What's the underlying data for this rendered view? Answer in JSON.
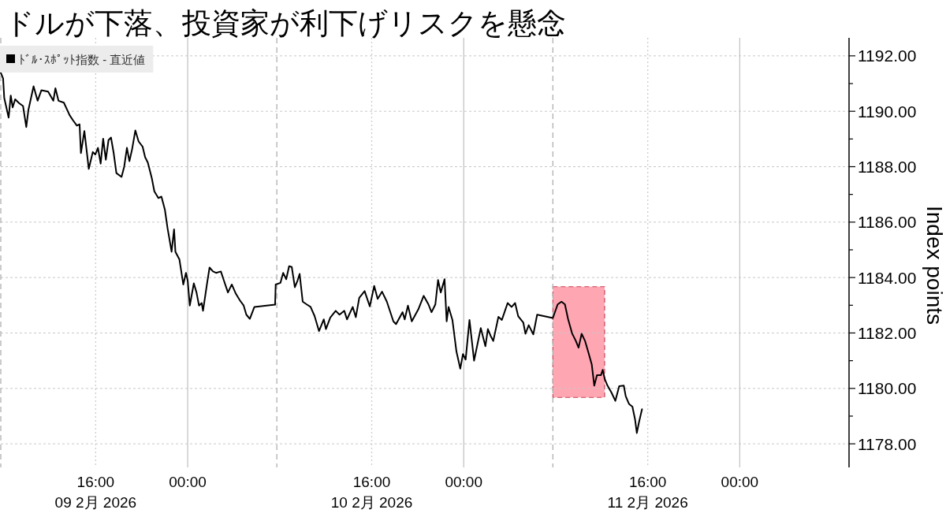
{
  "chart_data": {
    "type": "line",
    "title": "ドルが下落、投資家が利下げリスクを懸念",
    "ylabel": "Index points",
    "x": [
      "2026-02-09T07:45",
      "2026-02-09T07:57",
      "2026-02-09T08:03",
      "2026-02-09T08:26",
      "2026-02-09T08:37",
      "2026-02-09T08:47",
      "2026-02-09T09:00",
      "2026-02-09T09:21",
      "2026-02-09T09:41",
      "2026-02-09T09:58",
      "2026-02-09T10:09",
      "2026-02-09T10:36",
      "2026-02-09T10:57",
      "2026-02-09T11:17",
      "2026-02-09T11:52",
      "2026-02-09T12:19",
      "2026-02-09T12:30",
      "2026-02-09T12:46",
      "2026-02-09T13:14",
      "2026-02-09T13:44",
      "2026-02-09T14:02",
      "2026-02-09T14:22",
      "2026-02-09T14:36",
      "2026-02-09T14:43",
      "2026-02-09T15:01",
      "2026-02-09T15:17",
      "2026-02-09T15:24",
      "2026-02-09T15:45",
      "2026-02-09T15:58",
      "2026-02-09T16:12",
      "2026-02-09T16:26",
      "2026-02-09T16:39",
      "2026-02-09T16:53",
      "2026-02-09T17:07",
      "2026-02-09T17:20",
      "2026-02-09T17:34",
      "2026-02-09T17:48",
      "2026-02-09T18:15",
      "2026-02-09T18:29",
      "2026-02-09T18:43",
      "2026-02-09T18:56",
      "2026-02-09T19:10",
      "2026-02-09T19:27",
      "2026-02-09T19:44",
      "2026-02-09T20:05",
      "2026-02-09T20:18",
      "2026-02-09T20:32",
      "2026-02-09T20:53",
      "2026-02-09T21:06",
      "2026-02-09T21:27",
      "2026-02-09T21:43",
      "2026-02-09T22:01",
      "2026-02-09T22:15",
      "2026-02-09T22:22",
      "2026-02-09T22:36",
      "2026-02-09T22:49",
      "2026-02-09T22:56",
      "2026-02-09T23:17",
      "2026-02-09T23:37",
      "2026-02-09T23:51",
      "2026-02-10T00:00",
      "2026-02-10T00:11",
      "2026-02-10T00:32",
      "2026-02-10T00:46",
      "2026-02-10T00:59",
      "2026-02-10T01:13",
      "2026-02-10T01:20",
      "2026-02-10T01:41",
      "2026-02-10T01:54",
      "2026-02-10T02:12",
      "2026-02-10T02:28",
      "2026-02-10T02:53",
      "2026-02-10T03:09",
      "2026-02-10T03:30",
      "2026-02-10T03:50",
      "2026-02-10T04:11",
      "2026-02-10T04:32",
      "2026-02-10T04:52",
      "2026-02-10T05:06",
      "2026-02-10T05:24",
      "2026-02-10T05:48",
      "2026-02-10T07:36",
      "2026-02-10T07:39",
      "2026-02-10T08:04",
      "2026-02-10T08:18",
      "2026-02-10T08:34",
      "2026-02-10T08:49",
      "2026-02-10T09:03",
      "2026-02-10T09:19",
      "2026-02-10T09:33",
      "2026-02-10T09:44",
      "2026-02-10T10:00",
      "2026-02-10T10:21",
      "2026-02-10T10:41",
      "2026-02-10T11:02",
      "2026-02-10T11:25",
      "2026-02-10T11:50",
      "2026-02-10T12:01",
      "2026-02-10T12:24",
      "2026-02-10T12:52",
      "2026-02-10T13:12",
      "2026-02-10T13:37",
      "2026-02-10T13:51",
      "2026-02-10T14:21",
      "2026-02-10T14:37",
      "2026-02-10T14:55",
      "2026-02-10T15:23",
      "2026-02-10T15:50",
      "2026-02-10T16:13",
      "2026-02-10T16:31",
      "2026-02-10T16:54",
      "2026-02-10T17:19",
      "2026-02-10T17:53",
      "2026-02-10T18:07",
      "2026-02-10T18:41",
      "2026-02-10T18:52",
      "2026-02-10T19:09",
      "2026-02-10T19:29",
      "2026-02-10T20:03",
      "2026-02-10T20:31",
      "2026-02-10T20:56",
      "2026-02-10T21:12",
      "2026-02-10T21:32",
      "2026-02-10T21:46",
      "2026-02-10T22:00",
      "2026-02-10T22:20",
      "2026-02-10T22:31",
      "2026-02-10T22:41",
      "2026-02-10T23:01",
      "2026-02-10T23:22",
      "2026-02-10T23:42",
      "2026-02-10T23:56",
      "2026-02-11T00:10",
      "2026-02-11T00:30",
      "2026-02-11T00:54",
      "2026-02-11T01:12",
      "2026-02-11T01:29",
      "2026-02-11T01:53",
      "2026-02-11T02:06",
      "2026-02-11T02:20",
      "2026-02-11T02:34",
      "2026-02-11T03:01",
      "2026-02-11T03:19",
      "2026-02-11T03:49",
      "2026-02-11T04:10",
      "2026-02-11T04:28",
      "2026-02-11T04:44",
      "2026-02-11T05:11",
      "2026-02-11T05:22",
      "2026-02-11T05:39",
      "2026-02-11T06:03",
      "2026-02-11T06:23",
      "2026-02-11T07:45",
      "2026-02-11T08:10",
      "2026-02-11T08:30",
      "2026-02-11T08:48",
      "2026-02-11T09:04",
      "2026-02-11T09:25",
      "2026-02-11T09:45",
      "2026-02-11T09:59",
      "2026-02-11T10:15",
      "2026-02-11T10:33",
      "2026-02-11T10:51",
      "2026-02-11T11:08",
      "2026-02-11T11:21",
      "2026-02-11T11:35",
      "2026-02-11T11:56",
      "2026-02-11T12:05",
      "2026-02-11T12:16",
      "2026-02-11T12:30",
      "2026-02-11T12:50",
      "2026-02-11T13:11",
      "2026-02-11T13:31",
      "2026-02-11T13:55",
      "2026-02-11T14:05",
      "2026-02-11T14:22",
      "2026-02-11T14:40",
      "2026-02-11T14:54",
      "2026-02-11T15:03",
      "2026-02-11T15:14",
      "2026-02-11T15:30"
    ],
    "series": [
      {
        "name": "ﾄﾞﾙ･ｽﾎﾟｯﾄ指数 - 直近値",
        "color": "#000000",
        "values": [
          1191.39,
          1191.19,
          1190.48,
          1189.77,
          1190.57,
          1190.14,
          1190.43,
          1190.29,
          1190.19,
          1189.43,
          1190.05,
          1190.9,
          1190.38,
          1190.76,
          1190.71,
          1190.38,
          1190.83,
          1190.38,
          1190.31,
          1189.86,
          1189.67,
          1189.48,
          1189.53,
          1188.49,
          1189.29,
          1188.34,
          1187.92,
          1188.53,
          1188.44,
          1188.68,
          1188.11,
          1189.01,
          1188.25,
          1188.96,
          1189.05,
          1188.49,
          1187.77,
          1187.63,
          1188.01,
          1188.68,
          1188.2,
          1188.63,
          1189.31,
          1188.91,
          1188.72,
          1188.34,
          1188.15,
          1187.58,
          1187.11,
          1186.87,
          1186.92,
          1186.45,
          1185.78,
          1185.5,
          1184.93,
          1185.74,
          1184.93,
          1184.65,
          1183.75,
          1184.17,
          1183.89,
          1182.99,
          1183.79,
          1183.46,
          1182.99,
          1183.08,
          1182.8,
          1183.79,
          1184.36,
          1184.22,
          1184.17,
          1184.22,
          1183.89,
          1183.46,
          1183.75,
          1183.42,
          1183.18,
          1182.99,
          1182.66,
          1182.51,
          1182.94,
          1183.02,
          1183.75,
          1183.81,
          1184.17,
          1183.94,
          1184.41,
          1184.38,
          1183.65,
          1183.89,
          1184.13,
          1183.13,
          1183.03,
          1182.94,
          1182.61,
          1182.07,
          1182.49,
          1182.14,
          1182.56,
          1182.8,
          1182.66,
          1182.8,
          1182.49,
          1182.94,
          1182.57,
          1183.27,
          1183.51,
          1182.96,
          1183.7,
          1183.23,
          1183.49,
          1183.13,
          1182.42,
          1182.32,
          1182.75,
          1182.49,
          1182.99,
          1182.42,
          1182.85,
          1183.34,
          1183.03,
          1182.75,
          1183.03,
          1183.91,
          1183.46,
          1183.94,
          1182.42,
          1182.94,
          1182.47,
          1181.33,
          1180.71,
          1181.24,
          1181.04,
          1182.47,
          1181.0,
          1181.61,
          1182.18,
          1181.52,
          1182.14,
          1181.9,
          1181.71,
          1182.58,
          1182.47,
          1183.08,
          1182.94,
          1183.08,
          1182.61,
          1182.37,
          1181.97,
          1182.28,
          1181.95,
          1182.66,
          1182.54,
          1183.03,
          1183.13,
          1183.03,
          1182.51,
          1181.99,
          1181.71,
          1181.47,
          1181.97,
          1181.71,
          1181.28,
          1180.86,
          1180.1,
          1180.48,
          1180.48,
          1180.67,
          1180.33,
          1180.1,
          1179.86,
          1179.55,
          1180.08,
          1180.1,
          1179.72,
          1179.44,
          1179.34,
          1178.87,
          1178.39,
          1178.77,
          1179.25
        ]
      }
    ],
    "xlim": [
      "2026-02-09T07:45",
      "2026-02-12T09:30"
    ],
    "ylim": [
      1177.15,
      1192.65
    ],
    "xticks": [
      {
        "value": "2026-02-09T16:00",
        "label": "16:00\n09 2月 2026"
      },
      {
        "value": "2026-02-10T00:00",
        "label": "00:00"
      },
      {
        "value": "2026-02-10T16:00",
        "label": "16:00\n10 2月 2026"
      },
      {
        "value": "2026-02-11T00:00",
        "label": "00:00"
      },
      {
        "value": "2026-02-11T16:00",
        "label": "16:00\n11 2月 2026"
      },
      {
        "value": "2026-02-12T00:00",
        "label": "00:00"
      }
    ],
    "yticks": [
      {
        "value": 1178,
        "label": "1178.00"
      },
      {
        "value": 1179,
        "label": null
      },
      {
        "value": 1180,
        "label": "1180.00"
      },
      {
        "value": 1181,
        "label": null
      },
      {
        "value": 1182,
        "label": "1182.00"
      },
      {
        "value": 1183,
        "label": null
      },
      {
        "value": 1184,
        "label": "1184.00"
      },
      {
        "value": 1185,
        "label": null
      },
      {
        "value": 1186,
        "label": "1186.00"
      },
      {
        "value": 1187,
        "label": null
      },
      {
        "value": 1188,
        "label": "1188.00"
      },
      {
        "value": 1189,
        "label": null
      },
      {
        "value": 1190,
        "label": "1190.00"
      },
      {
        "value": 1191,
        "label": null
      },
      {
        "value": 1192,
        "label": "1192.00"
      }
    ],
    "grid": "y",
    "legend": "top left",
    "marker": "none",
    "line_style": "solid",
    "ref_lines": [
      {
        "axis": "x",
        "value": "2026-02-09T07:45",
        "color": "#b0b0b0",
        "line_style": "dashed"
      },
      {
        "axis": "x",
        "value": "2026-02-10T07:45",
        "color": "#b0b0b0",
        "line_style": "dashed"
      },
      {
        "axis": "x",
        "value": "2026-02-11T07:45",
        "color": "#b0b0b0",
        "line_style": "dashed"
      },
      {
        "axis": "x",
        "value": "2026-02-09T16:00",
        "color": "#cccccc",
        "line_style": "dotted"
      },
      {
        "axis": "x",
        "value": "2026-02-10T16:00",
        "color": "#cccccc",
        "line_style": "dotted"
      },
      {
        "axis": "x",
        "value": "2026-02-11T16:00",
        "color": "#cccccc",
        "line_style": "dotted"
      },
      {
        "axis": "x",
        "value": "2026-02-10T00:00",
        "color": "#c4c4c4",
        "line_style": "solid"
      },
      {
        "axis": "x",
        "value": "2026-02-11T00:00",
        "color": "#c4c4c4",
        "line_style": "solid"
      },
      {
        "axis": "x",
        "value": "2026-02-12T00:00",
        "color": "#c4c4c4",
        "line_style": "solid"
      }
    ],
    "bands": [
      {
        "axis": "x",
        "from": "2026-02-11T07:45",
        "to": "2026-02-11T12:15",
        "color": "#ffa6b3"
      }
    ]
  }
}
